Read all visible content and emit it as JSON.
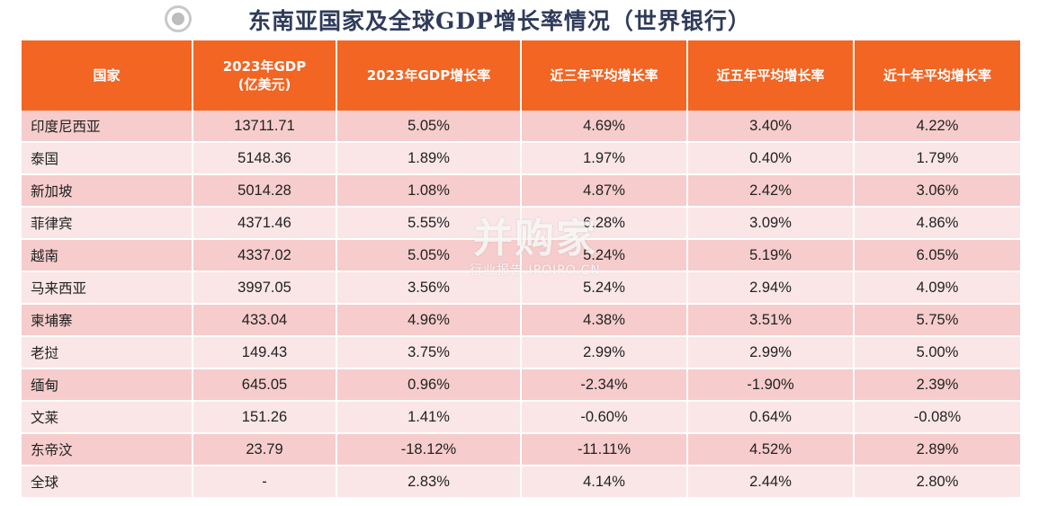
{
  "title": "东南亚国家及全球GDP增长率情况（世界银行）",
  "icons": {
    "title_bullet": "radio-bullet-icon"
  },
  "colors": {
    "header_bg": "#f26522",
    "row_odd": "#f6cccc",
    "row_even": "#fae6e6",
    "title_text": "#2f3b5a"
  },
  "table": {
    "headers": [
      "国家",
      "2023年GDP\n(亿美元)",
      "2023年GDP增长率",
      "近三年平均增长率",
      "近五年平均增长率",
      "近十年平均增长率"
    ],
    "rows": [
      [
        "印度尼西亚",
        "13711.71",
        "5.05%",
        "4.69%",
        "3.40%",
        "4.22%"
      ],
      [
        "泰国",
        "5148.36",
        "1.89%",
        "1.97%",
        "0.40%",
        "1.79%"
      ],
      [
        "新加坡",
        "5014.28",
        "1.08%",
        "4.87%",
        "2.42%",
        "3.06%"
      ],
      [
        "菲律宾",
        "4371.46",
        "5.55%",
        "6.28%",
        "3.09%",
        "4.86%"
      ],
      [
        "越南",
        "4337.02",
        "5.05%",
        "5.24%",
        "5.19%",
        "6.05%"
      ],
      [
        "马来西亚",
        "3997.05",
        "3.56%",
        "5.24%",
        "2.94%",
        "4.09%"
      ],
      [
        "柬埔寨",
        "433.04",
        "4.96%",
        "4.38%",
        "3.51%",
        "5.75%"
      ],
      [
        "老挝",
        "149.43",
        "3.75%",
        "2.99%",
        "2.99%",
        "5.00%"
      ],
      [
        "缅甸",
        "645.05",
        "0.96%",
        "-2.34%",
        "-1.90%",
        "2.39%"
      ],
      [
        "文莱",
        "151.26",
        "1.41%",
        "-0.60%",
        "0.64%",
        "-0.08%"
      ],
      [
        "东帝汶",
        "23.79",
        "-18.12%",
        "-11.11%",
        "4.52%",
        "2.89%"
      ],
      [
        "全球",
        "-",
        "2.83%",
        "4.14%",
        "2.44%",
        "2.80%"
      ]
    ]
  },
  "watermark": {
    "logo": "并购家",
    "sub": "行业报告 IPOIPO.CN"
  }
}
